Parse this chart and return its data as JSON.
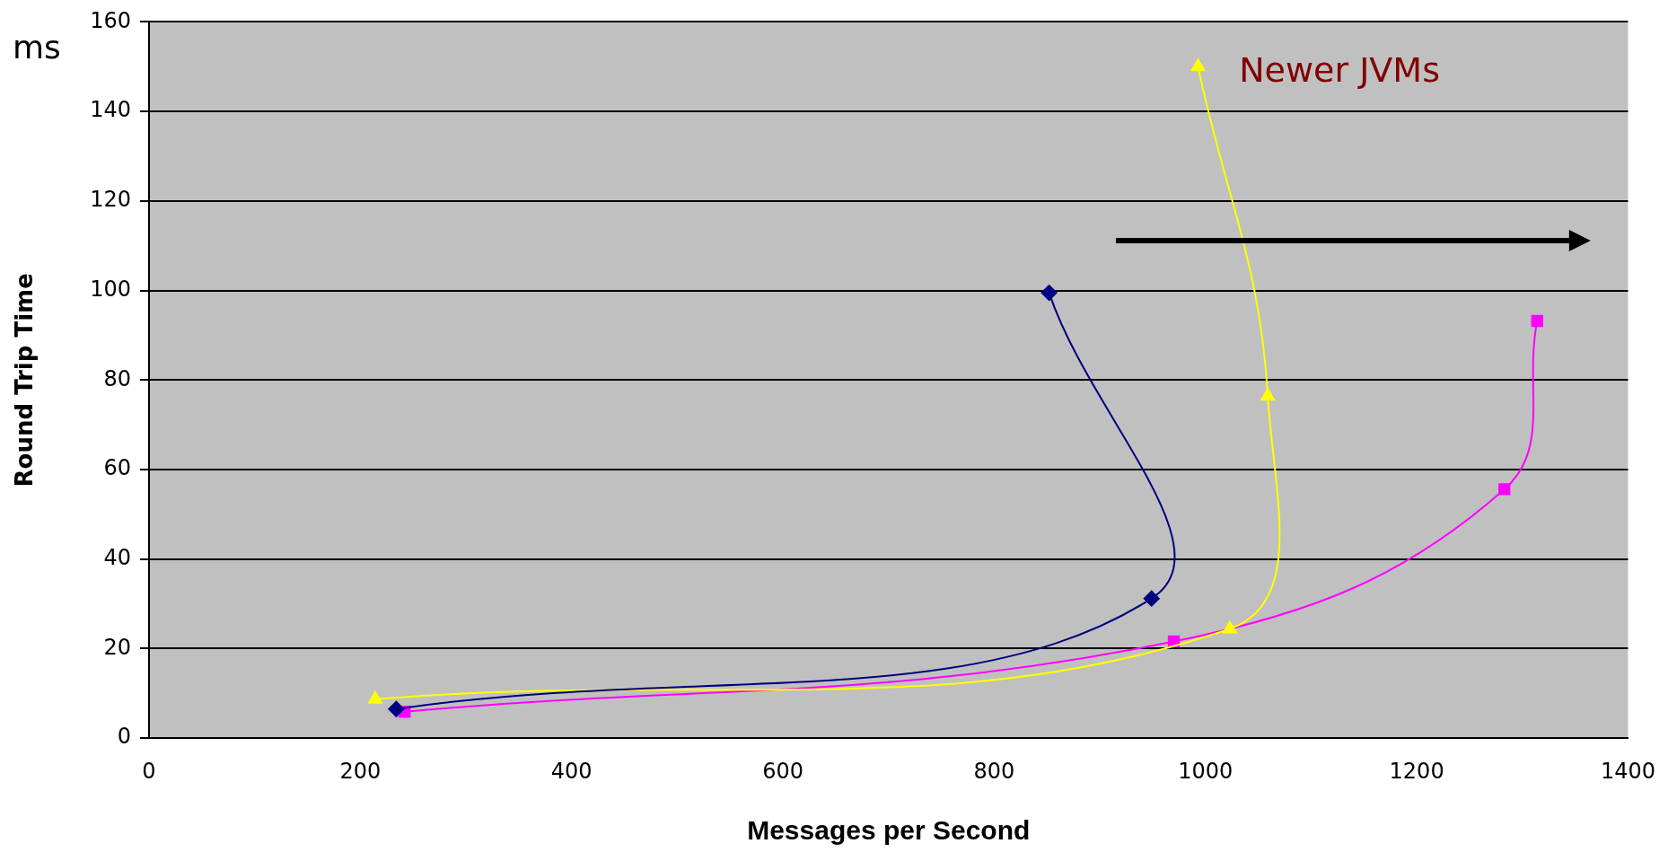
{
  "chart_data": {
    "type": "scatter",
    "xlabel": "Messages per Second",
    "ylabel": "Round Trip Time",
    "annotations": [
      "ms",
      "Newer JVMs"
    ],
    "series": [
      {
        "type": "line",
        "color": "#000080",
        "marker": "diamond",
        "x": [
          234,
          949,
          852
        ],
        "values": [
          6.5,
          31.2,
          99.5
        ]
      },
      {
        "type": "line",
        "color": "#ffff00",
        "marker": "triangle",
        "x": [
          214,
          1023,
          1059,
          993
        ],
        "values": [
          8.7,
          24.4,
          76.4,
          150
        ]
      },
      {
        "type": "line",
        "color": "#ff00ff",
        "marker": "square",
        "x": [
          242,
          970,
          1283,
          1314
        ],
        "values": [
          5.9,
          21.6,
          55.6,
          93.2
        ]
      }
    ],
    "xlim": [
      0,
      1400
    ],
    "xticks": [
      0,
      200,
      400,
      600,
      800,
      1000,
      1200,
      1400
    ],
    "ylim": [
      0,
      160
    ],
    "yticks": [
      0,
      20,
      40,
      60,
      80,
      100,
      120,
      140,
      160
    ],
    "grid": "y",
    "legend": false
  }
}
